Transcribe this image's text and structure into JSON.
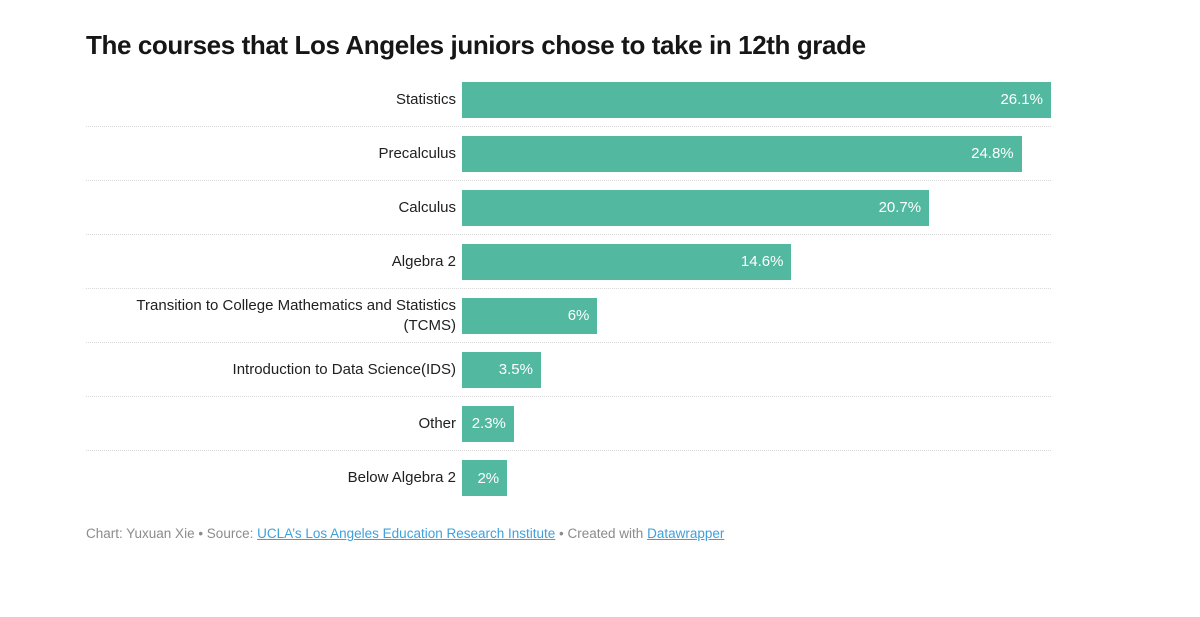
{
  "title": "The courses that Los Angeles juniors chose to take in 12th grade",
  "chart_data": {
    "type": "bar",
    "orientation": "horizontal",
    "title": "The courses that Los Angeles juniors chose to take in 12th grade",
    "categories": [
      "Statistics",
      "Precalculus",
      "Calculus",
      "Algebra 2",
      "Transition to College Mathematics and Statistics (TCMS)",
      "Introduction to Data Science(IDS)",
      "Other",
      "Below Algebra 2"
    ],
    "values": [
      26.1,
      24.8,
      20.7,
      14.6,
      6,
      3.5,
      2.3,
      2
    ],
    "formatted_values": [
      "26.1%",
      "24.8%",
      "20.7%",
      "14.6%",
      "6%",
      "3.5%",
      "2.3%",
      "2%"
    ],
    "xlabel": "",
    "ylabel": "",
    "xlim": [
      0,
      26.1
    ],
    "grid": "dotted row separators",
    "legend": "none",
    "value_label_position": "inside-end",
    "bar_color": "#52b8a0",
    "value_label_color": "#ffffff",
    "separator_color": "#d9d9d9"
  },
  "footer": {
    "credit_text": "Chart: Yuxuan Xie • Source:",
    "source_link_text": "UCLA’s Los Angeles Education Research Institute",
    "created_text": "• Created with",
    "created_link_text": "Datawrapper",
    "link_color": "#3ea0dc",
    "text_color": "#8b8b8b"
  }
}
